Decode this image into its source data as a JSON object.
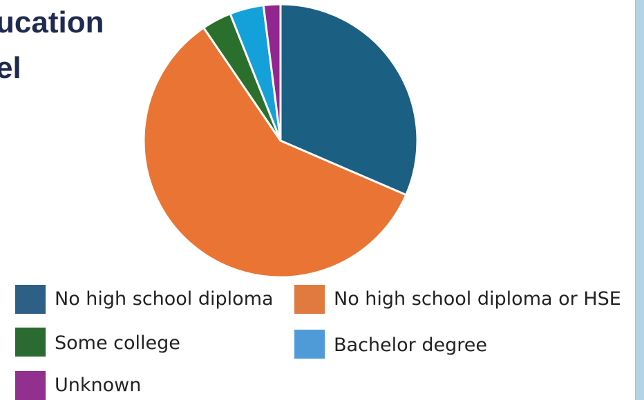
{
  "title_lines": [
    "ucation",
    "el"
  ],
  "colors": {
    "no_hs_diploma": "#1b5f82",
    "no_hs_diploma_or_hse": "#ea7434",
    "some_college": "#2b6f2c",
    "bachelor": "#14a0d8",
    "unknown": "#92268f"
  },
  "chart_data": {
    "type": "pie",
    "slices": [
      {
        "label": "No high school diploma",
        "value": 31.5,
        "color": "#1b5f82",
        "legend_color": "#2e5f84"
      },
      {
        "label": "No high school diploma or HSE",
        "value": 59.0,
        "color": "#ea7434",
        "legend_color": "#e07a3f"
      },
      {
        "label": "Some college",
        "value": 3.5,
        "color": "#2b6f2c",
        "legend_color": "#2b6a31"
      },
      {
        "label": "Bachelor degree",
        "value": 4.0,
        "color": "#14a0d8",
        "legend_color": "#4f9bd8"
      },
      {
        "label": "Unknown",
        "value": 2.0,
        "color": "#92268f",
        "legend_color": "#92308f"
      }
    ],
    "legend_placement": "bottom"
  }
}
